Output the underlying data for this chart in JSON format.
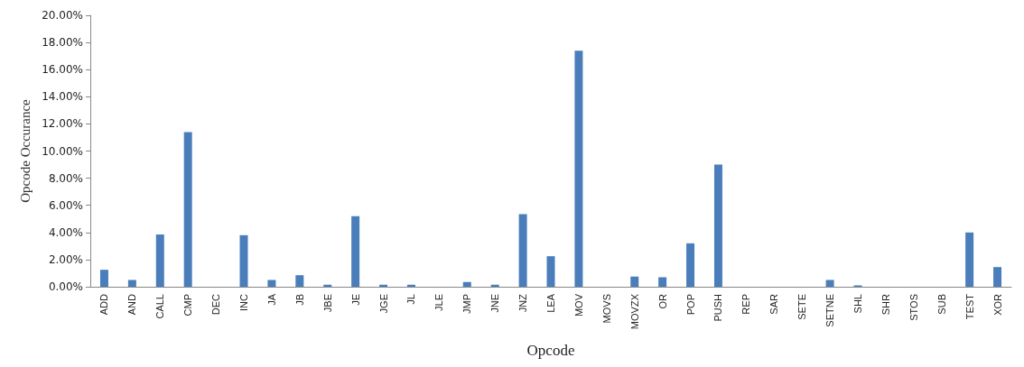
{
  "chart_data": {
    "type": "bar",
    "xlabel": "Opcode",
    "ylabel": "Opcode Occurance",
    "categories": [
      "ADD",
      "AND",
      "CALL",
      "CMP",
      "DEC",
      "INC",
      "JA",
      "JB",
      "JBE",
      "JE",
      "JGE",
      "JL",
      "JLE",
      "JMP",
      "JNE",
      "JNZ",
      "LEA",
      "MOV",
      "MOVS",
      "MOVZX",
      "OR",
      "POP",
      "PUSH",
      "REP",
      "SAR",
      "SETE",
      "SETNE",
      "SHL",
      "SHR",
      "STOS",
      "SUB",
      "TEST",
      "XOR"
    ],
    "values": [
      1.25,
      0.5,
      3.85,
      11.4,
      0,
      3.8,
      0.5,
      0.85,
      0.15,
      5.2,
      0.15,
      0.15,
      0,
      0.35,
      0.15,
      5.35,
      2.25,
      17.4,
      0,
      0.75,
      0.7,
      3.2,
      9.0,
      0,
      0,
      0,
      0.5,
      0.1,
      0,
      0,
      0,
      4.0,
      1.45
    ],
    "color": "#4a7ebb",
    "ylim": [
      0,
      20
    ],
    "yticks": [
      {
        "value": 0,
        "label": "0.00%"
      },
      {
        "value": 2,
        "label": "2.00%"
      },
      {
        "value": 4,
        "label": "4.00%"
      },
      {
        "value": 6,
        "label": "6.00%"
      },
      {
        "value": 8,
        "label": "8.00%"
      },
      {
        "value": 10,
        "label": "10.00%"
      },
      {
        "value": 12,
        "label": "12.00%"
      },
      {
        "value": 14,
        "label": "14.00%"
      },
      {
        "value": 16,
        "label": "16.00%"
      },
      {
        "value": 18,
        "label": "18.00%"
      },
      {
        "value": 20,
        "label": "20.00%"
      }
    ],
    "grid": false
  }
}
